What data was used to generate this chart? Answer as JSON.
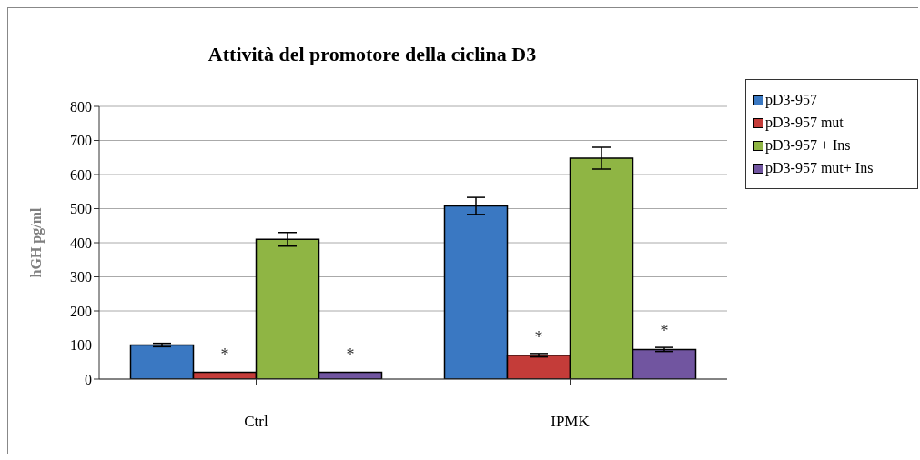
{
  "chart_data": {
    "type": "bar",
    "title": "Attività del promotore della ciclina D3",
    "ylabel": "hGH pg/ml",
    "categories": [
      "Ctrl",
      "IPMK"
    ],
    "series": [
      {
        "name": "pD3-957",
        "color": "#3a78c2",
        "values": [
          100,
          508
        ],
        "errors": [
          5,
          25
        ]
      },
      {
        "name": "pD3-957 mut",
        "color": "#c43c39",
        "values": [
          20,
          70
        ],
        "errors": [
          null,
          5
        ],
        "value_labels": [
          "*",
          "*"
        ]
      },
      {
        "name": "pD3-957 + Ins",
        "color": "#8fb544",
        "values": [
          410,
          648
        ],
        "errors": [
          20,
          32
        ]
      },
      {
        "name": "pD3-957 mut+ Ins",
        "color": "#7155a0",
        "values": [
          20,
          87
        ],
        "errors": [
          null,
          6
        ],
        "value_labels": [
          "*",
          "*"
        ]
      }
    ],
    "ylim": [
      0,
      800
    ],
    "yticks": [
      0,
      100,
      200,
      300,
      400,
      500,
      600,
      700,
      800
    ],
    "grid": "y",
    "legend": "right"
  }
}
